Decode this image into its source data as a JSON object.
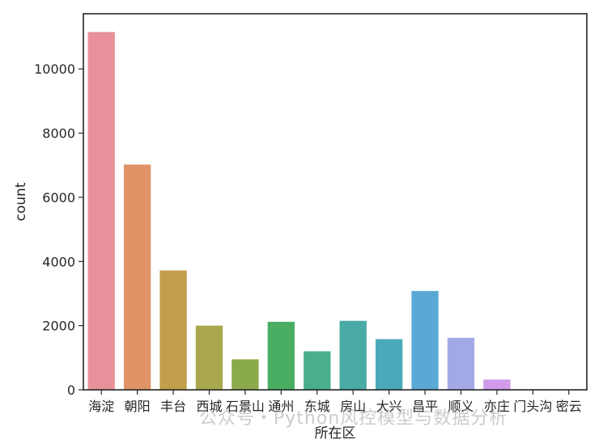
{
  "chart_data": {
    "type": "bar",
    "xlabel": "所在区",
    "ylabel": "count",
    "categories": [
      "海淀",
      "朝阳",
      "丰台",
      "西城",
      "石景山",
      "通州",
      "东城",
      "房山",
      "大兴",
      "昌平",
      "顺义",
      "亦庄",
      "门头沟",
      "密云"
    ],
    "values": [
      11150,
      7020,
      3720,
      2000,
      950,
      2120,
      1200,
      2150,
      1580,
      3080,
      1620,
      320,
      8,
      6
    ],
    "ylim": [
      0,
      11720
    ],
    "yticks": [
      0,
      2000,
      4000,
      6000,
      8000,
      10000
    ],
    "colors": [
      "#e8919b",
      "#e09367",
      "#c39f4b",
      "#a9a84e",
      "#8bab4a",
      "#4aae62",
      "#4aad8e",
      "#4aaaa5",
      "#4aaab9",
      "#5aa8d6",
      "#a3a9e6",
      "#d19be9",
      "#e095d8",
      "#e495c0"
    ],
    "grid": false,
    "legend": "none"
  },
  "watermark": "公众号・Python风控模型与数据分析"
}
